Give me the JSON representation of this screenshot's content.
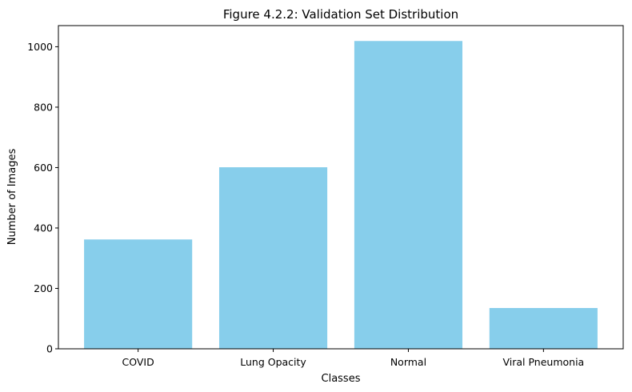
{
  "chart_data": {
    "type": "bar",
    "title": "Figure 4.2.2: Validation Set Distribution",
    "xlabel": "Classes",
    "ylabel": "Number of Images",
    "categories": [
      "COVID",
      "Lung Opacity",
      "Normal",
      "Viral Pneumonia"
    ],
    "values": [
      362,
      601,
      1019,
      135
    ],
    "ylim": [
      0,
      1070
    ],
    "yticks": [
      0,
      200,
      400,
      600,
      800,
      1000
    ],
    "grid": false,
    "bar_color": "#87ceeb"
  }
}
